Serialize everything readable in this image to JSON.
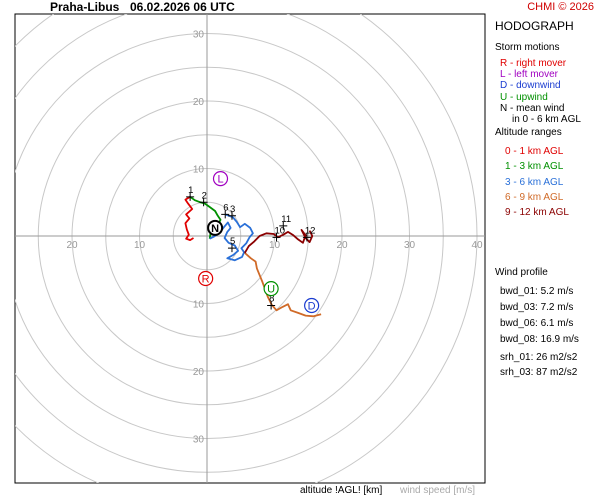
{
  "header": {
    "station": "Praha-Libus",
    "datetime": "06.02.2026 06 UTC",
    "copyright": "CHMI © 2026"
  },
  "side": {
    "title": "HODOGRAPH",
    "storm_heading": "Storm motions",
    "storm_items": [
      {
        "text": "R - right mover",
        "color": "#e00000"
      },
      {
        "text": "L - left mover",
        "color": "#a000c0"
      },
      {
        "text": "D - downwind",
        "color": "#1a3cd0"
      },
      {
        "text": "U - upwind",
        "color": "#009000"
      },
      {
        "text": "N - mean wind",
        "color": "#000000"
      },
      {
        "text": "in 0 - 6 km AGL",
        "color": "#000000"
      }
    ],
    "alt_heading": "Altitude ranges",
    "alt_items": [
      {
        "text": "0 - 1 km AGL",
        "color": "#e00000"
      },
      {
        "text": "1 - 3 km AGL",
        "color": "#009000"
      },
      {
        "text": "3 - 6 km AGL",
        "color": "#2a70d8"
      },
      {
        "text": "6 - 9 km AGL",
        "color": "#d06a28"
      },
      {
        "text": "9 - 12 km AGL",
        "color": "#8b0000"
      }
    ],
    "wind_heading": "Wind profile",
    "wind_items": [
      "bwd_01: 5.2 m/s",
      "bwd_03: 7.2 m/s",
      "bwd_06: 6.1 m/s",
      "bwd_08: 16.9 m/s"
    ],
    "srh_items": [
      "srh_01: 26 m2/s2",
      "srh_03: 87 m2/s2"
    ]
  },
  "footer": {
    "altitude_label": "altitude !AGL! [km]",
    "speed_label": "wind speed [m/s]"
  },
  "chart_data": {
    "type": "line",
    "axis_ticks": [
      10,
      20,
      30,
      40
    ],
    "ring_radii": [
      5,
      10,
      15,
      20,
      25,
      30,
      35,
      40
    ],
    "storm_markers": [
      {
        "label": "R",
        "u": -0.2,
        "v": -6.3,
        "color": "#e00000"
      },
      {
        "label": "L",
        "u": 2.0,
        "v": 8.5,
        "color": "#a000c0"
      },
      {
        "label": "D",
        "u": 15.5,
        "v": -10.3,
        "color": "#1a3cd0"
      },
      {
        "label": "U",
        "u": 9.5,
        "v": -7.8,
        "color": "#009000"
      },
      {
        "label": "N",
        "u": 1.2,
        "v": 1.2,
        "color": "#000000"
      }
    ],
    "height_labels": [
      {
        "text": "1",
        "u": -2.5,
        "v": 5.8
      },
      {
        "text": "2",
        "u": -0.5,
        "v": 5.0
      },
      {
        "text": "3",
        "u": 3.7,
        "v": 3.0
      },
      {
        "text": "5",
        "u": 3.7,
        "v": -1.8
      },
      {
        "text": "6",
        "u": 2.7,
        "v": 3.2
      },
      {
        "text": "8",
        "u": 9.5,
        "v": -10.3
      },
      {
        "text": "10",
        "u": 10.3,
        "v": -0.2
      },
      {
        "text": "11",
        "u": 11.3,
        "v": 1.5
      },
      {
        "text": "12",
        "u": 14.8,
        "v": -0.2
      }
    ],
    "series": [
      {
        "color": "#e00000",
        "points": [
          [
            -2.5,
            5.8
          ],
          [
            -3.2,
            5.4
          ],
          [
            -2.8,
            4.8
          ],
          [
            -2.2,
            4.0
          ],
          [
            -3.1,
            3.2
          ],
          [
            -2.6,
            2.6
          ],
          [
            -3.2,
            1.9
          ],
          [
            -3.0,
            1.0
          ],
          [
            -2.7,
            0.2
          ],
          [
            -3.1,
            -0.4
          ],
          [
            -2.5,
            -0.6
          ],
          [
            -2.0,
            -0.3
          ]
        ]
      },
      {
        "color": "#009000",
        "points": [
          [
            -2.5,
            5.8
          ],
          [
            -1.8,
            5.3
          ],
          [
            -1.0,
            5.0
          ],
          [
            -0.3,
            4.8
          ],
          [
            0.4,
            4.3
          ],
          [
            1.2,
            3.7
          ],
          [
            1.6,
            3.0
          ],
          [
            2.0,
            2.4
          ],
          [
            1.6,
            1.6
          ],
          [
            0.9,
            0.9
          ],
          [
            0.5,
            0.3
          ],
          [
            0.4,
            -0.4
          ]
        ]
      },
      {
        "color": "#2a70d8",
        "points": [
          [
            0.4,
            -0.4
          ],
          [
            1.0,
            -0.1
          ],
          [
            1.8,
            0.4
          ],
          [
            2.5,
            1.3
          ],
          [
            3.1,
            2.0
          ],
          [
            3.5,
            1.2
          ],
          [
            3.0,
            0.6
          ],
          [
            2.6,
            -0.3
          ],
          [
            3.2,
            -1.0
          ],
          [
            4.1,
            -1.4
          ],
          [
            4.6,
            -2.2
          ],
          [
            3.9,
            -2.8
          ],
          [
            3.0,
            -3.3
          ],
          [
            4.1,
            -3.6
          ],
          [
            5.2,
            -3.1
          ],
          [
            5.5,
            -2.4
          ],
          [
            5.1,
            -1.8
          ],
          [
            5.8,
            -1.1
          ],
          [
            6.3,
            -0.2
          ],
          [
            6.8,
            0.4
          ],
          [
            6.4,
            1.2
          ],
          [
            5.6,
            1.8
          ],
          [
            4.9,
            1.3
          ],
          [
            4.4,
            2.1
          ],
          [
            3.8,
            2.8
          ],
          [
            2.7,
            3.2
          ]
        ]
      },
      {
        "color": "#d06a28",
        "points": [
          [
            5.6,
            -2.5
          ],
          [
            6.5,
            -3.3
          ],
          [
            7.2,
            -3.8
          ],
          [
            7.4,
            -4.8
          ],
          [
            7.8,
            -5.8
          ],
          [
            8.2,
            -6.8
          ],
          [
            8.6,
            -7.9
          ],
          [
            9.0,
            -9.0
          ],
          [
            9.6,
            -10.2
          ],
          [
            10.3,
            -11.0
          ],
          [
            11.2,
            -10.5
          ],
          [
            12.0,
            -10.1
          ],
          [
            12.4,
            -11.0
          ],
          [
            13.5,
            -11.4
          ],
          [
            14.6,
            -11.8
          ],
          [
            15.8,
            -11.9
          ],
          [
            16.9,
            -11.6
          ]
        ]
      },
      {
        "color": "#8b0000",
        "points": [
          [
            5.6,
            -2.5
          ],
          [
            6.2,
            -1.5
          ],
          [
            7.0,
            -0.8
          ],
          [
            7.8,
            0.0
          ],
          [
            8.8,
            0.4
          ],
          [
            9.9,
            0.3
          ],
          [
            10.5,
            -0.2
          ],
          [
            11.3,
            0.2
          ],
          [
            12.0,
            0.6
          ],
          [
            12.8,
            0.1
          ],
          [
            13.5,
            -0.5
          ],
          [
            14.2,
            -1.0
          ],
          [
            14.6,
            0.1
          ],
          [
            14.0,
            0.9
          ],
          [
            14.6,
            -0.3
          ],
          [
            15.2,
            -0.9
          ],
          [
            15.6,
            0.0
          ],
          [
            15.2,
            0.8
          ]
        ]
      }
    ]
  }
}
